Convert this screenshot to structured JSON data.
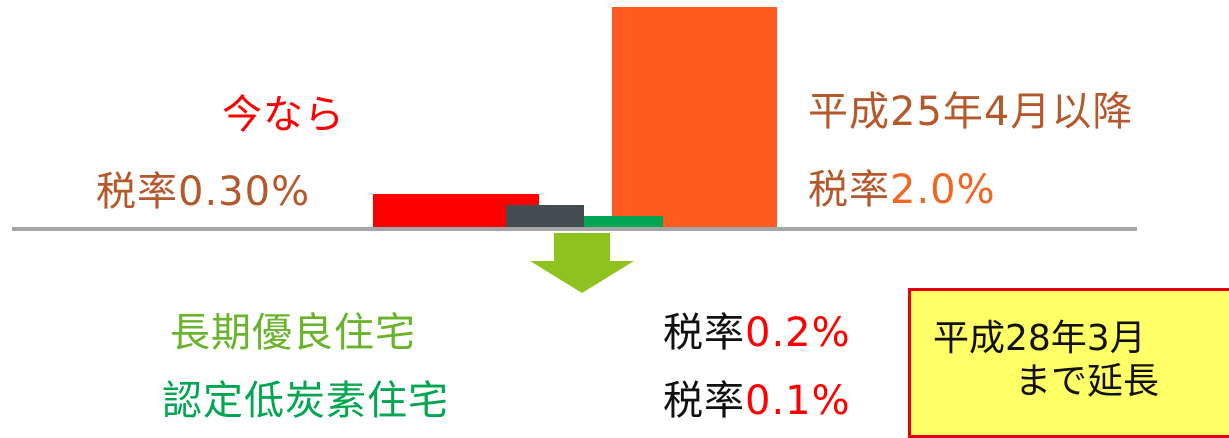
{
  "left_block": {
    "title": "今なら",
    "rate_label": "税率",
    "rate_value": "0.30%"
  },
  "right_block": {
    "title": "平成25年4月以降",
    "rate_label": "税率",
    "rate_value": "2.0%"
  },
  "bottom": {
    "item1_name": "長期優良住宅",
    "item1_rate_label": "税率",
    "item1_rate_value": "0.2%",
    "item2_name": "認定低炭素住宅",
    "item2_rate_label": "税率",
    "item2_rate_value": "0.1%"
  },
  "note_box": {
    "line1": "平成28年3月",
    "line2": "まで延長"
  },
  "chart_data": {
    "type": "bar",
    "categories": [
      "",
      "",
      "",
      ""
    ],
    "series": [
      {
        "values": [
          0.3,
          0.2,
          0.1,
          2.0
        ]
      }
    ],
    "colors": [
      "#ff0000",
      "#434c50",
      "#00a651",
      "#ff5a1f"
    ],
    "ylim": [
      0,
      2.0
    ]
  },
  "colors": {
    "red_text": "#ff0000",
    "brown_text": "#b5582b",
    "orange_text": "#f26522",
    "green_text": "#6ab42d",
    "arrow_green": "#8dc21f",
    "baseline_gray": "#a6a6a6",
    "note_bg": "#ffff66",
    "note_border": "#e60012"
  }
}
